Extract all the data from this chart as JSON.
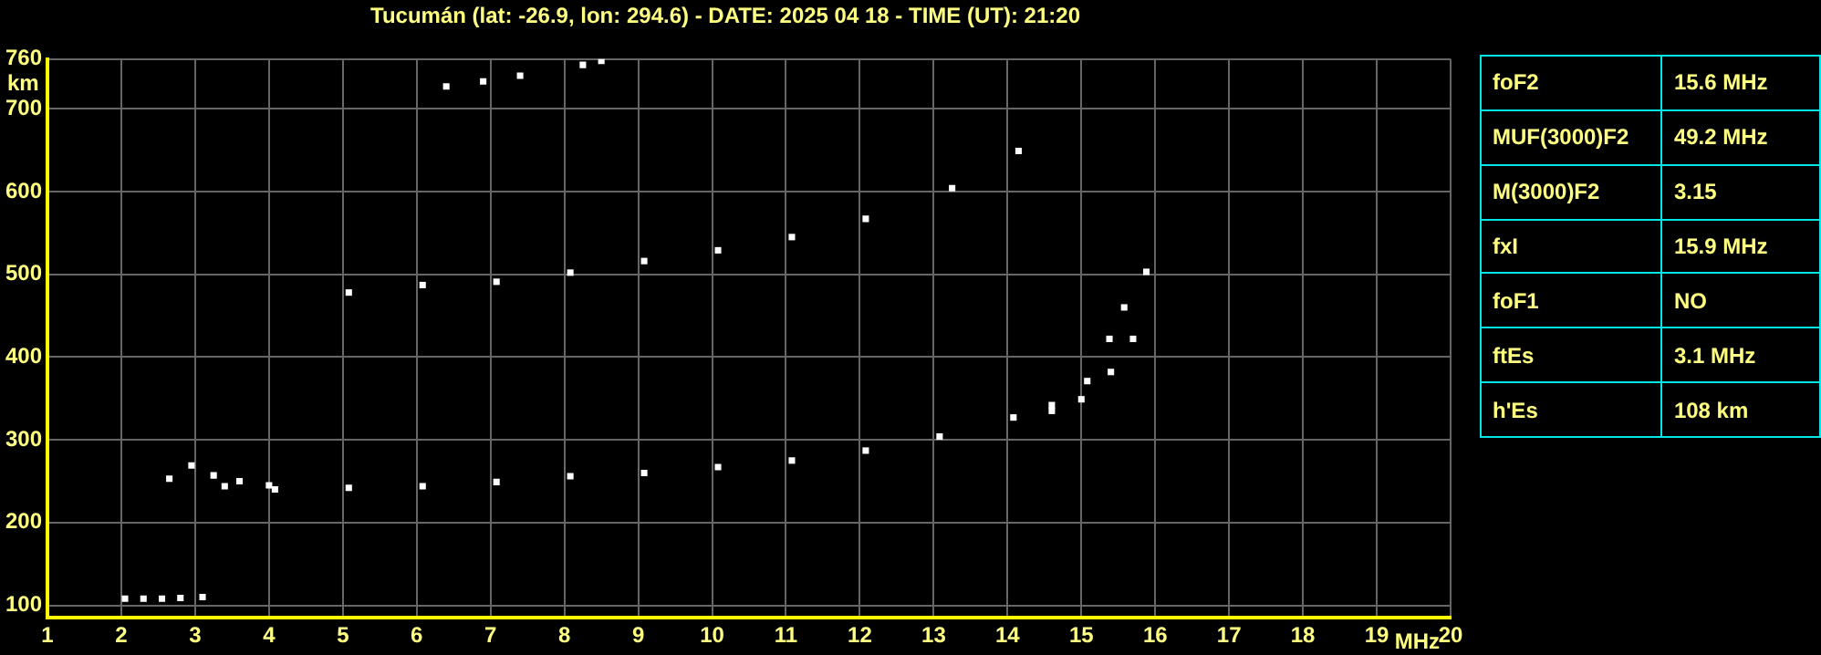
{
  "chart_data": {
    "type": "scatter",
    "title": "Tucumán (lat: -26.9, lon: 294.6) - DATE: 2025 04 18 - TIME (UT): 21:20",
    "xlabel": "MHz",
    "ylabel": "km",
    "xlim": [
      1,
      20
    ],
    "ylim": [
      85,
      760
    ],
    "xticks": [
      1,
      2,
      3,
      4,
      5,
      6,
      7,
      8,
      9,
      10,
      11,
      12,
      13,
      14,
      15,
      16,
      17,
      18,
      19,
      20
    ],
    "yticks": [
      100,
      200,
      300,
      400,
      500,
      600,
      700,
      760
    ],
    "grid": true,
    "marker": "square",
    "legend": false,
    "series": [
      {
        "color": "#ffffff",
        "x": [
          2.05,
          2.3,
          2.55,
          2.8,
          3.1
        ],
        "values": [
          108,
          108,
          108,
          109,
          110
        ]
      },
      {
        "color": "#ffffff",
        "x": [
          2.65,
          3.4,
          4.08,
          5.08,
          6.08,
          7.08,
          8.08,
          9.08,
          10.08,
          11.08,
          12.08,
          13.08,
          14.08,
          14.6,
          15.08,
          15.38,
          15.58
        ],
        "values": [
          253,
          244,
          240,
          242,
          244,
          249,
          256,
          260,
          267,
          275,
          287,
          304,
          327,
          342,
          371,
          422,
          460
        ]
      },
      {
        "color": "#ffffff",
        "x": [
          2.95,
          3.25,
          3.6,
          4.0
        ],
        "values": [
          269,
          257,
          250,
          245
        ]
      },
      {
        "color": "#ffffff",
        "x": [
          14.6,
          15.0,
          15.4,
          15.7,
          15.88
        ],
        "values": [
          335,
          349,
          382,
          422,
          503
        ]
      },
      {
        "color": "#ffffff",
        "x": [
          5.08,
          6.08,
          7.08,
          8.08,
          9.08,
          10.08,
          11.08,
          12.08,
          13.25,
          14.15
        ],
        "values": [
          478,
          487,
          491,
          502,
          516,
          529,
          545,
          567,
          604,
          649
        ]
      },
      {
        "color": "#ffffff",
        "x": [
          6.4,
          6.9,
          7.4,
          8.25,
          8.5
        ],
        "values": [
          727,
          733,
          740,
          753,
          758
        ]
      }
    ],
    "annotations": [
      "foF2",
      "15.6 MHz",
      "MUF(3000)F2",
      "49.2 MHz",
      "M(3000)F2",
      "3.15",
      "fxI",
      "15.9 MHz",
      "foF1",
      "NO",
      "ftEs",
      "3.1 MHz",
      "h'Es",
      "108 km"
    ]
  }
}
